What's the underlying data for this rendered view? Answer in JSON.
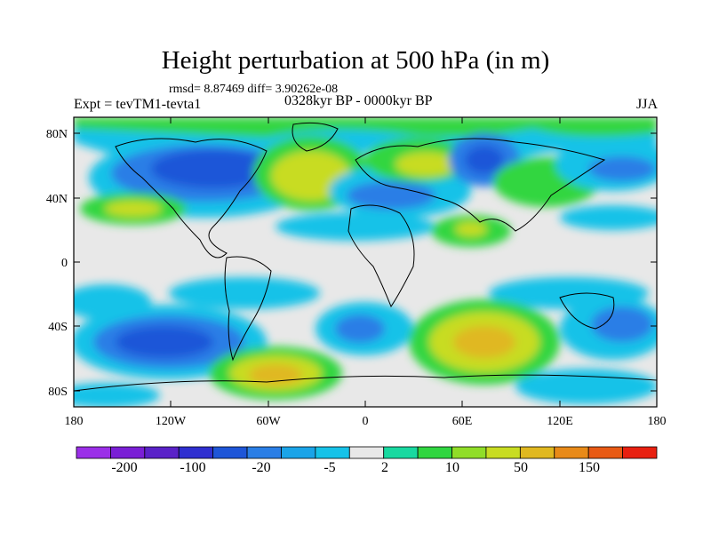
{
  "title": "Height perturbation at 500 hPa (in m)",
  "stats": "rmsd= 8.87469 diff= 3.90262e-08",
  "experiment": "Expt = tevTM1-tevta1",
  "period": "0328kyr BP - 0000kyr BP",
  "season": "JJA",
  "lat_labels": [
    "80N",
    "40N",
    "0",
    "40S",
    "80S"
  ],
  "lon_labels": [
    "180",
    "120W",
    "60W",
    "0",
    "60E",
    "120E",
    "180"
  ],
  "colorbar": {
    "colors": [
      "#9b2fe8",
      "#7a1fd6",
      "#5a22c8",
      "#2f2fd0",
      "#1e56d8",
      "#2a7ee6",
      "#1aa4e8",
      "#16c2e8",
      "#e8e8e8",
      "#18d9a0",
      "#30d640",
      "#90dd28",
      "#c8dc22",
      "#e0b820",
      "#e88a18",
      "#e85a14",
      "#e82010"
    ],
    "labels": [
      "-200",
      "-100",
      "-20",
      "-5",
      "2",
      "10",
      "50",
      "150"
    ]
  },
  "map_data": {
    "lon_range": [
      -180,
      180
    ],
    "lat_range": [
      -90,
      90
    ],
    "field": "height perturbation (m)"
  }
}
